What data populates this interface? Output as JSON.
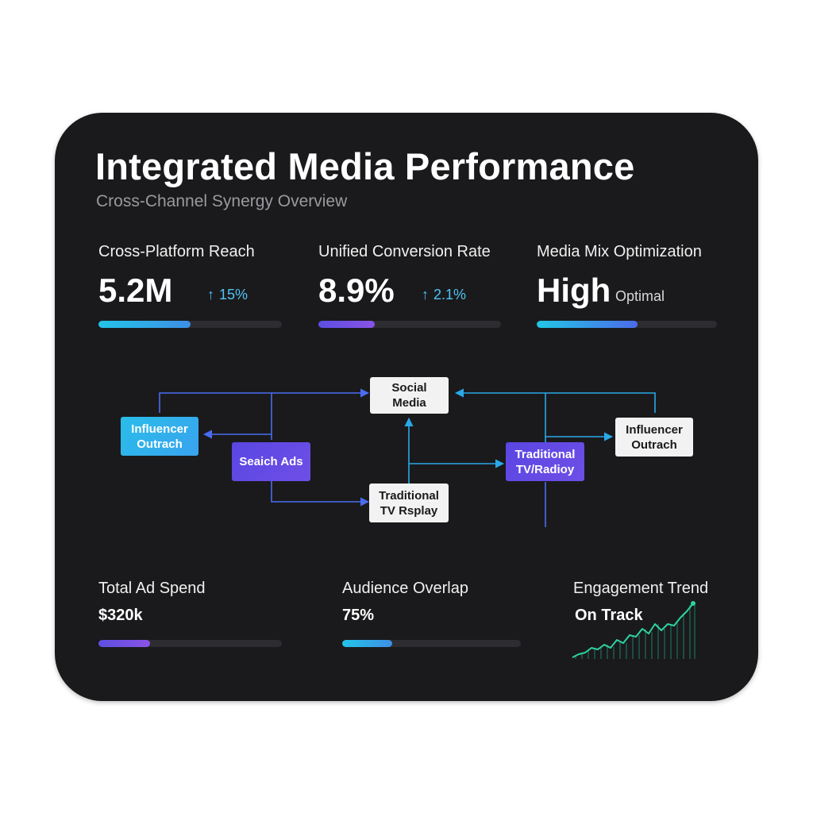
{
  "header": {
    "title": "Integrated Media Performance",
    "subtitle": "Cross-Channel Synergy Overview"
  },
  "kpis": [
    {
      "label": "Cross-Platform Reach",
      "value": "5.2M",
      "delta": "15%",
      "delta_icon": "arrow-up-icon",
      "progress": 0.5
    },
    {
      "label": "Unified Conversion Rate",
      "value": "8.9%",
      "delta": "2.1%",
      "delta_icon": "arrow-up-icon",
      "progress": 0.31
    },
    {
      "label": "Media Mix Optimization",
      "value": "High",
      "note": "Optimal",
      "progress": 0.56
    }
  ],
  "diagram": {
    "nodes": [
      {
        "id": "influencer-left",
        "lines": [
          "Influencer",
          "Outrach"
        ]
      },
      {
        "id": "search-ads",
        "lines": [
          "Seaich Ads"
        ]
      },
      {
        "id": "social-media",
        "lines": [
          "Social Media"
        ]
      },
      {
        "id": "traditional-center",
        "lines": [
          "Traditional",
          "TV Rsplay"
        ]
      },
      {
        "id": "traditional-right",
        "lines": [
          "Traditional",
          "TV/Radioy"
        ]
      },
      {
        "id": "influencer-right",
        "lines": [
          "Influencer",
          "Outrach"
        ]
      }
    ]
  },
  "bottom": {
    "spend": {
      "label": "Total Ad Spend",
      "value": "$320k",
      "progress": 0.28
    },
    "overlap": {
      "label": "Audience Overlap",
      "value": "75%",
      "progress": 0.28
    },
    "engagement": {
      "label": "Engagement Trend",
      "value": "On Track",
      "trend_icon": "sparkline-chart-icon"
    }
  },
  "colors": {
    "card_bg": "#1a1a1c",
    "accent_cyan": "#23c4e8",
    "accent_purple": "#5b4fe0",
    "connector_blue": "#4a6cf0",
    "sparkline_green": "#2fd3a0"
  }
}
